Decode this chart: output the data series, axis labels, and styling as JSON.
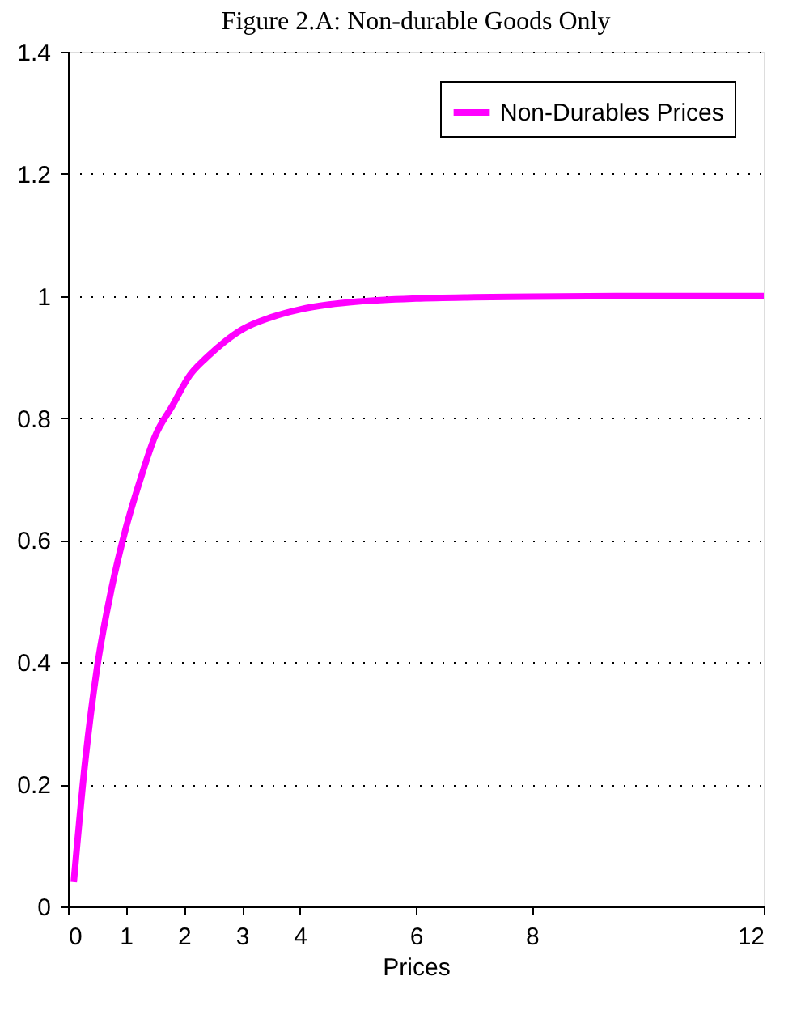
{
  "chart_data": {
    "type": "line",
    "title": "Figure 2.A: Non-durable Goods Only",
    "xlabel": "Prices",
    "x": [
      0.1,
      0.3,
      0.5,
      0.75,
      1,
      1.25,
      1.5,
      1.8,
      2.1,
      2.4,
      2.7,
      3,
      3.5,
      4,
      4.5,
      5,
      6,
      7,
      8,
      10,
      12
    ],
    "series": [
      {
        "name": "Non-Durables Prices",
        "color": "#ff00ff",
        "values": [
          0.04,
          0.24,
          0.39,
          0.52,
          0.62,
          0.7,
          0.77,
          0.82,
          0.87,
          0.9,
          0.925,
          0.945,
          0.965,
          0.978,
          0.986,
          0.991,
          0.996,
          0.998,
          0.999,
          1.0,
          1.0
        ]
      }
    ],
    "xlim": [
      0,
      12
    ],
    "xticks": [
      0,
      1,
      2,
      3,
      4,
      6,
      8,
      12
    ],
    "ylim": [
      0,
      1.4
    ],
    "yticks": [
      0,
      0.2,
      0.4,
      0.6,
      0.8,
      1,
      1.2,
      1.4
    ],
    "grid": "y",
    "legend": "top right",
    "line_style": "solid",
    "marker": "none"
  }
}
